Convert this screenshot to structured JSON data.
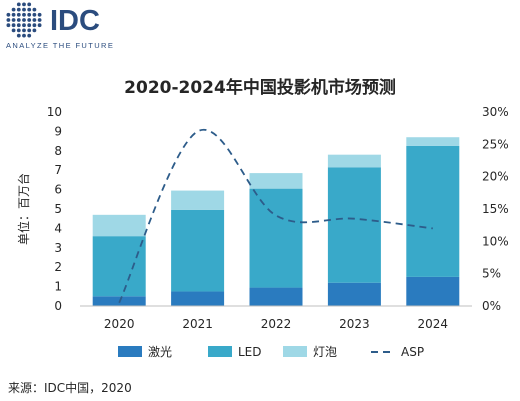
{
  "logo": {
    "name": "IDC",
    "tagline": "ANALYZE THE FUTURE",
    "color": "#2b4c7e"
  },
  "source": "来源：IDC中国，2020",
  "chart_data": {
    "type": "bar",
    "stacked": true,
    "title": "2020-2024年中国投影机市场预测",
    "ylabel": "单位：百万台",
    "ylim": [
      0,
      10
    ],
    "yticks": [
      0,
      1,
      2,
      3,
      4,
      5,
      6,
      7,
      8,
      9,
      10
    ],
    "y2lim": [
      0,
      30
    ],
    "y2ticks": [
      "0%",
      "5%",
      "10%",
      "15%",
      "20%",
      "25%",
      "30%"
    ],
    "categories": [
      "2020",
      "2021",
      "2022",
      "2023",
      "2024"
    ],
    "series": [
      {
        "name": "激光",
        "type": "bar",
        "color": "#2a7bbf",
        "values": [
          0.5,
          0.75,
          0.95,
          1.2,
          1.5
        ]
      },
      {
        "name": "LED",
        "type": "bar",
        "color": "#39a9c9",
        "values": [
          3.1,
          4.2,
          5.1,
          5.95,
          6.75
        ]
      },
      {
        "name": "灯泡",
        "type": "bar",
        "color": "#9fd8e6",
        "values": [
          1.1,
          1.0,
          0.8,
          0.65,
          0.45
        ]
      },
      {
        "name": "ASP",
        "type": "line",
        "axis": "right",
        "style": "dashed",
        "color": "#2d5c8a",
        "values": [
          0.5,
          27,
          14,
          13.5,
          12
        ]
      }
    ],
    "legend_position": "bottom",
    "grid": false
  }
}
